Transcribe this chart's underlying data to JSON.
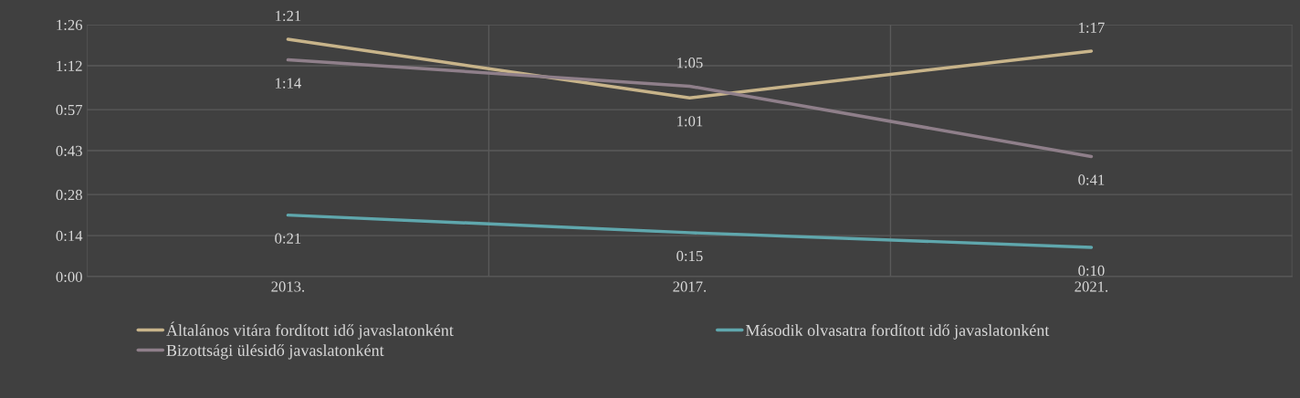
{
  "chart_data": {
    "type": "line",
    "categories": [
      "2013.",
      "2017.",
      "2021."
    ],
    "series": [
      {
        "name": "Általános vitára fordított idő javaslatonként",
        "color": "#c8b48a",
        "values": [
          81,
          61,
          77
        ],
        "value_labels": [
          "1:21",
          "1:01",
          "1:17"
        ]
      },
      {
        "name": "Második olvasatra fordított idő javaslatonként",
        "color": "#5fa7ad",
        "values": [
          21,
          15,
          10
        ],
        "value_labels": [
          "0:21",
          "0:15",
          "0:10"
        ]
      },
      {
        "name": "Bizottsági ülésidő javaslatonként",
        "color": "#8f7f8a",
        "values": [
          74,
          65,
          41
        ],
        "value_labels": [
          "1:14",
          "1:05",
          "0:41"
        ]
      }
    ],
    "ylim": [
      0,
      86
    ],
    "yticks": [
      {
        "value": 0,
        "label": "0:00"
      },
      {
        "value": 14,
        "label": "0:14"
      },
      {
        "value": 28,
        "label": "0:28"
      },
      {
        "value": 43,
        "label": "0:43"
      },
      {
        "value": 57,
        "label": "0:57"
      },
      {
        "value": 72,
        "label": "1:12"
      },
      {
        "value": 86,
        "label": "1:26"
      }
    ],
    "grid": true,
    "legend": "bottom",
    "marker": "none",
    "line_style": "solid"
  }
}
